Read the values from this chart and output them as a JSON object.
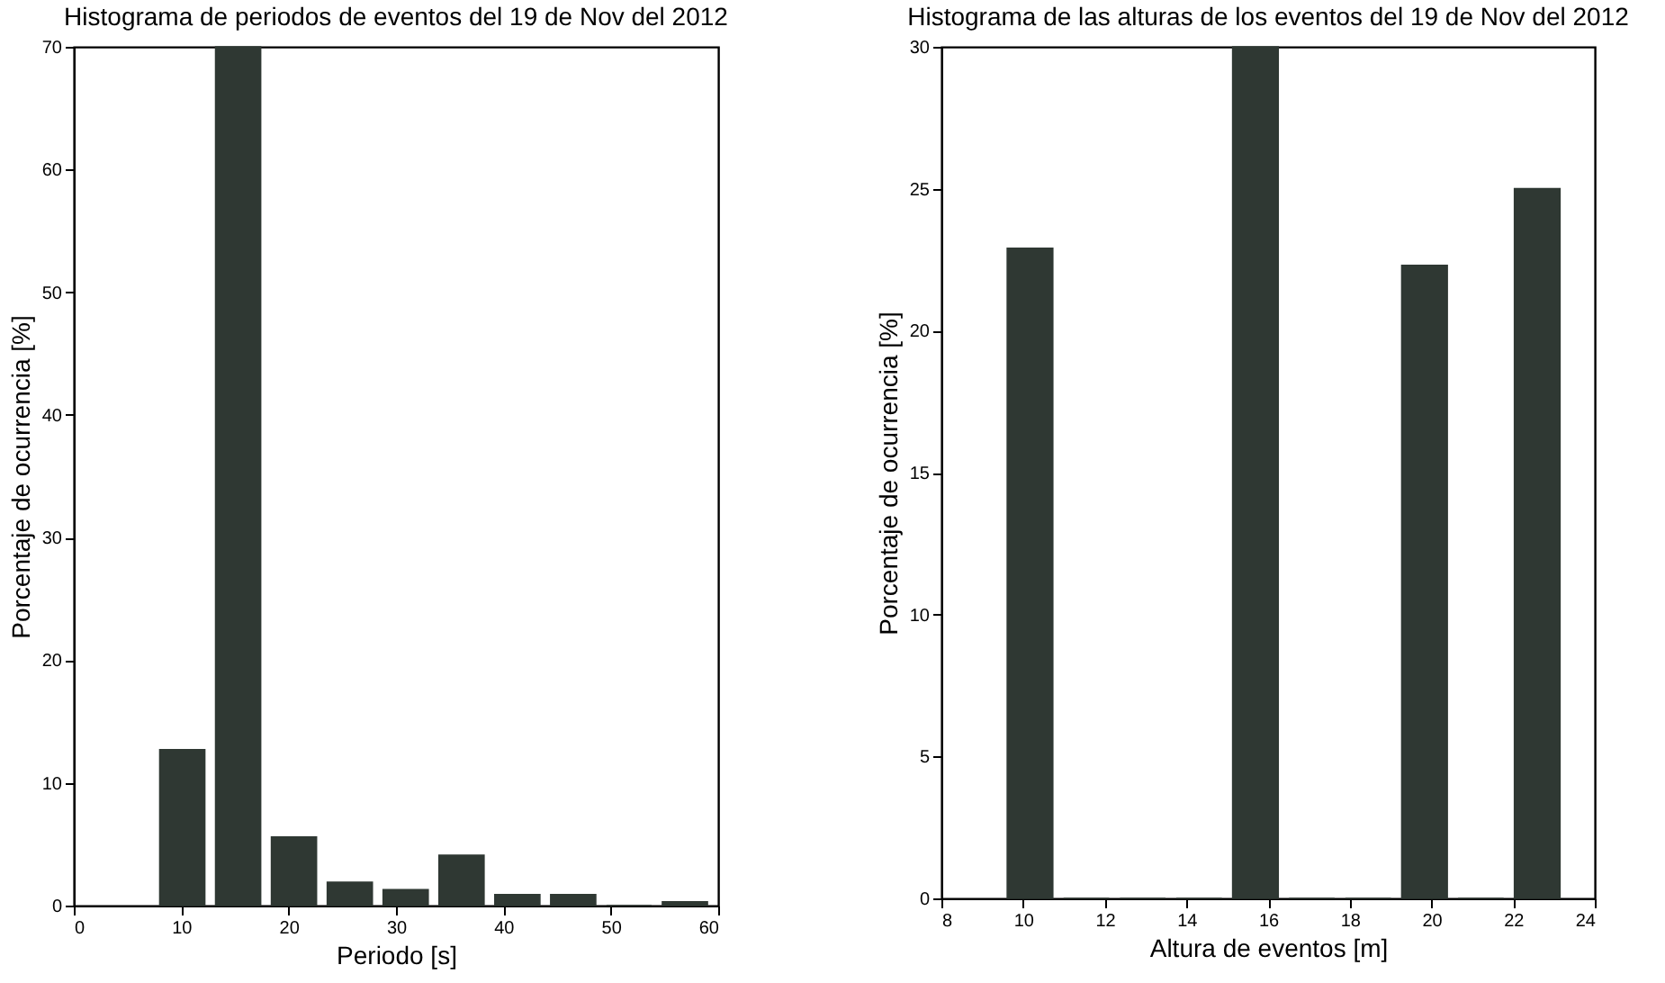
{
  "chart_data": [
    {
      "type": "histogram",
      "title": "Histograma de periodos de eventos del 19 de Nov del 2012",
      "xlabel": "Periodo [s]",
      "ylabel": "Porcentaje de ocurrencia [%]",
      "bins": [
        7.5,
        12.7,
        17.9,
        23.1,
        28.3,
        33.5,
        38.7,
        43.9,
        49.1,
        54.3,
        59.5
      ],
      "values": [
        12.7,
        70,
        5.6,
        1.9,
        1.3,
        4.1,
        0.9,
        0.9,
        0,
        0.3
      ],
      "color": "#2f3833",
      "xlim": [
        0,
        60
      ],
      "xticks": [
        0,
        10,
        20,
        30,
        40,
        50,
        60
      ],
      "ylim": [
        0,
        70
      ],
      "yticks": [
        0,
        10,
        20,
        30,
        40,
        50,
        60,
        70
      ]
    },
    {
      "type": "histogram",
      "title": "Histograma de las alturas de los eventos del 19 de Nov del 2012",
      "xlabel": "Altura de eventos [m]",
      "ylabel": "Porcentaje de ocurrencia [%]",
      "bins": [
        9.48,
        10.86,
        12.24,
        13.62,
        15.0,
        16.38,
        17.76,
        19.14,
        20.52,
        21.9,
        23.28
      ],
      "values": [
        22.9,
        0,
        0,
        0,
        30,
        0,
        0,
        22.3,
        0,
        25.0
      ],
      "color": "#2f3833",
      "xlim": [
        8,
        24
      ],
      "xticks": [
        8,
        10,
        12,
        14,
        16,
        18,
        20,
        22,
        24
      ],
      "ylim": [
        0,
        30
      ],
      "yticks": [
        0,
        5,
        10,
        15,
        20,
        25,
        30
      ]
    }
  ]
}
